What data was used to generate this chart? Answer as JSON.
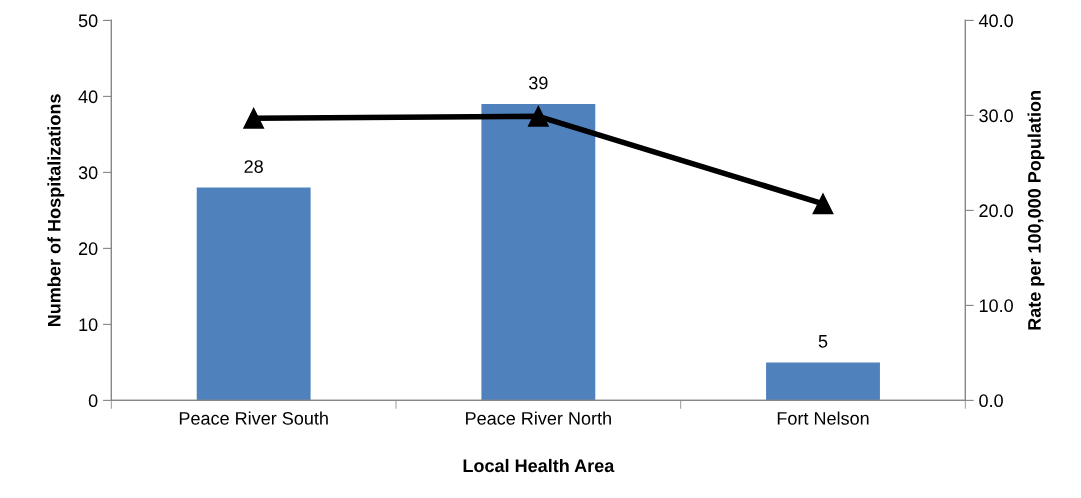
{
  "chart_data": {
    "type": "bar",
    "xlabel": "Local Health Area",
    "ylabel": "Number of Hospitalizations",
    "y2label": "Rate per 100,000 Population",
    "categories": [
      "Peace River South",
      "Peace River North",
      "Fort Nelson"
    ],
    "series": [
      {
        "color": "#4f81bd",
        "values": [
          28,
          39,
          5
        ],
        "value_labels": [
          "28",
          "39",
          "5"
        ]
      },
      {
        "type": "line",
        "axis": "y2",
        "color": "#000000",
        "values": [
          29.7,
          29.9,
          20.7
        ],
        "marker": "triangle",
        "line_style": "solid"
      }
    ],
    "ylim": [
      0,
      50
    ],
    "yticks": [
      0,
      10,
      20,
      30,
      40,
      50
    ],
    "y2lim": [
      0,
      40
    ],
    "y2ticks": [
      {
        "value": 0,
        "label": "0.0"
      },
      {
        "value": 10,
        "label": "10.0"
      },
      {
        "value": 20,
        "label": "20.0"
      },
      {
        "value": 30,
        "label": "30.0"
      },
      {
        "value": 40,
        "label": "40.0"
      }
    ],
    "grid": false,
    "legend": false
  }
}
